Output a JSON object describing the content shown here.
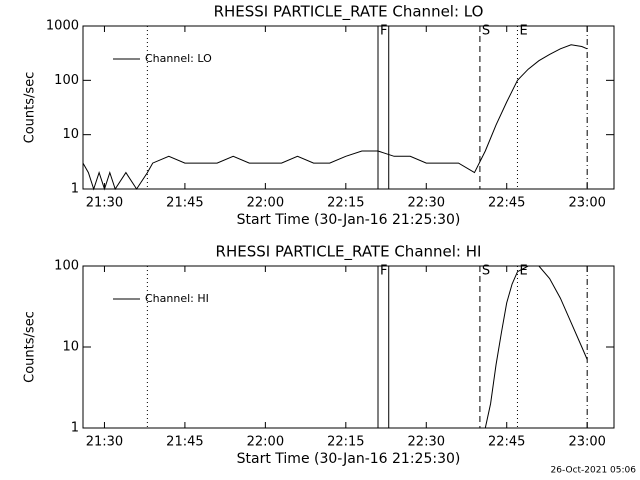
{
  "chart_data": [
    {
      "type": "line",
      "title": "RHESSI PARTICLE_RATE Channel: LO",
      "x_label": "Start Time (30-Jan-16 21:25:30)",
      "y_label": "Counts/sec",
      "ylog": true,
      "ylim": [
        1,
        1000
      ],
      "yticks": [
        1,
        10,
        100,
        1000
      ],
      "xlim": [
        "21:26",
        "23:05"
      ],
      "xticks": [
        "21:30",
        "21:45",
        "22:00",
        "22:15",
        "22:30",
        "22:45",
        "23:00"
      ],
      "x": [
        "21:26",
        "21:27",
        "21:28",
        "21:29",
        "21:30",
        "21:31",
        "21:32",
        "21:34",
        "21:36",
        "21:38",
        "21:39",
        "21:42",
        "21:45",
        "21:48",
        "21:51",
        "21:54",
        "21:57",
        "22:00",
        "22:03",
        "22:06",
        "22:09",
        "22:12",
        "22:15",
        "22:18",
        "22:21",
        "22:24",
        "22:27",
        "22:30",
        "22:33",
        "22:36",
        "22:39",
        "22:41",
        "22:43",
        "22:45",
        "22:47",
        "22:49",
        "22:51",
        "22:53",
        "22:55",
        "22:57",
        "22:59",
        "23:00"
      ],
      "series": [
        {
          "name": "Channel: LO",
          "color": "#000000",
          "values": [
            3,
            2,
            1,
            2,
            1,
            2,
            1,
            2,
            1,
            2,
            3,
            4,
            3,
            3,
            3,
            4,
            3,
            3,
            3,
            4,
            3,
            3,
            4,
            5,
            5,
            4,
            4,
            3,
            3,
            3,
            2,
            5,
            15,
            40,
            100,
            160,
            230,
            300,
            380,
            450,
            420,
            380
          ]
        }
      ],
      "markers": [
        {
          "x": "21:38",
          "style": "dotted"
        },
        {
          "x": "22:21",
          "label": "F",
          "style": "solid"
        },
        {
          "x": "22:23",
          "style": "solid"
        },
        {
          "x": "22:40",
          "label": "S",
          "style": "dashed"
        },
        {
          "x": "22:47",
          "label": "E",
          "style": "dotted"
        },
        {
          "x": "23:00",
          "style": "dashdot"
        }
      ]
    },
    {
      "type": "line",
      "title": "RHESSI PARTICLE_RATE Channel: HI",
      "x_label": "Start Time (30-Jan-16 21:25:30)",
      "y_label": "Counts/sec",
      "ylog": true,
      "ylim": [
        1,
        100
      ],
      "yticks": [
        1,
        10,
        100
      ],
      "xlim": [
        "21:26",
        "23:05"
      ],
      "xticks": [
        "21:30",
        "21:45",
        "22:00",
        "22:15",
        "22:30",
        "22:45",
        "23:00"
      ],
      "x": [
        "22:41",
        "22:42",
        "22:43",
        "22:44",
        "22:45",
        "22:46",
        "22:47",
        "22:49",
        "22:51",
        "22:53",
        "22:55",
        "22:57",
        "22:59",
        "23:00"
      ],
      "series": [
        {
          "name": "Channel: HI",
          "color": "#000000",
          "values": [
            1,
            2,
            6,
            15,
            35,
            60,
            85,
            100,
            100,
            70,
            40,
            20,
            10,
            7
          ]
        }
      ],
      "markers": [
        {
          "x": "21:38",
          "style": "dotted"
        },
        {
          "x": "22:21",
          "label": "F",
          "style": "solid"
        },
        {
          "x": "22:23",
          "style": "solid"
        },
        {
          "x": "22:40",
          "label": "S",
          "style": "dashed"
        },
        {
          "x": "22:47",
          "label": "E",
          "style": "dotted"
        },
        {
          "x": "23:00",
          "style": "dashdot"
        }
      ]
    }
  ],
  "footer": "26-Oct-2021 05:06"
}
